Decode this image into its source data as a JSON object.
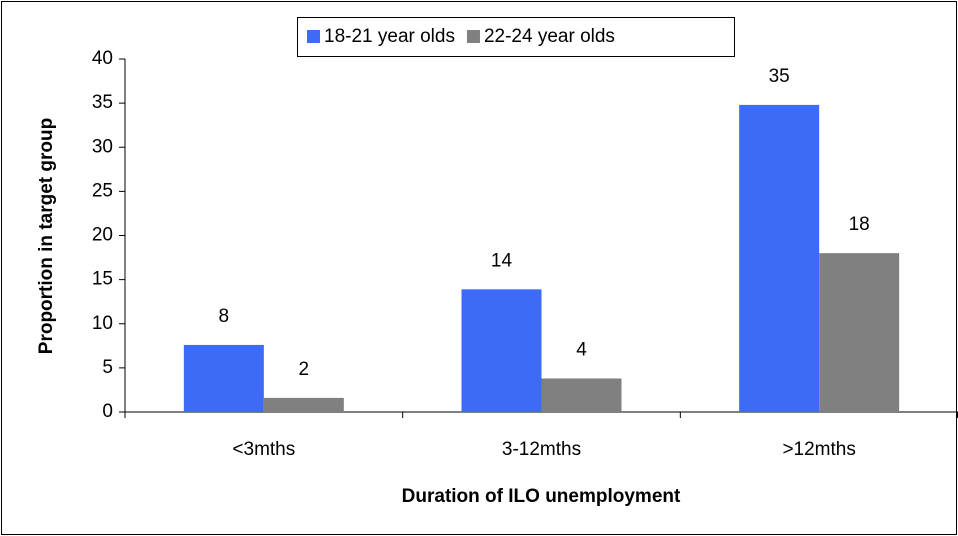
{
  "chart_data": {
    "type": "bar",
    "x_label": "Duration of ILO unemployment",
    "y_label": "Proportion in target group",
    "categories": [
      "<3mths",
      "3-12mths",
      ">12mths"
    ],
    "series": [
      {
        "name": "18-21 year olds",
        "color": "#3d6bf5",
        "values": [
          7.6,
          13.9,
          34.8
        ],
        "value_labels": [
          "8",
          "14",
          "35"
        ]
      },
      {
        "name": "22-24 year olds",
        "color": "#808080",
        "values": [
          1.6,
          3.8,
          18
        ],
        "value_labels": [
          "2",
          "4",
          "18"
        ]
      }
    ],
    "ylim": [
      0,
      40
    ],
    "yticks": [
      0,
      5,
      10,
      15,
      20,
      25,
      30,
      35,
      40
    ],
    "grid": false,
    "legend": "top"
  }
}
